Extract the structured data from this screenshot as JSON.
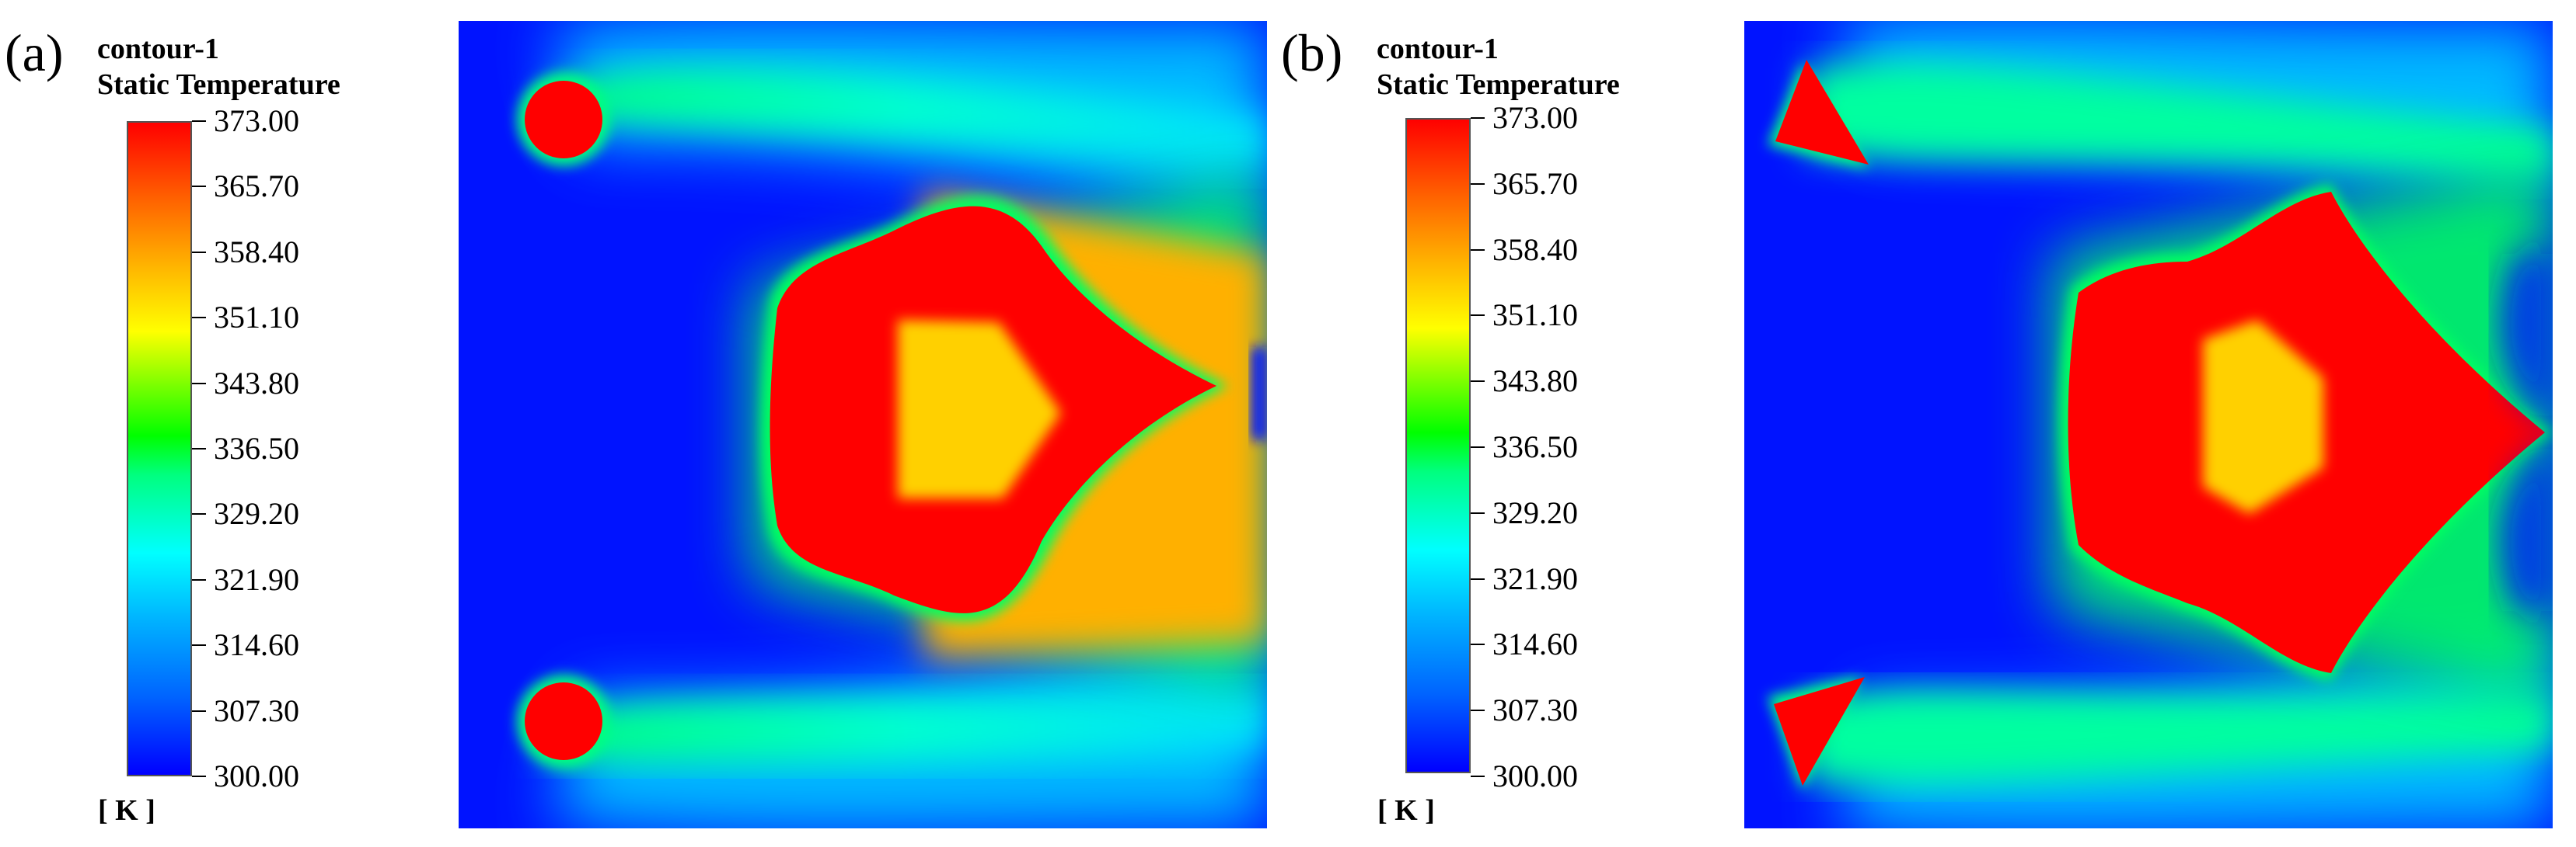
{
  "panels": [
    {
      "label": "(a)",
      "legend": {
        "title_line1": "contour-1",
        "title_line2": "Static Temperature",
        "ticks": [
          "373.00",
          "365.70",
          "358.40",
          "351.10",
          "343.80",
          "336.50",
          "329.20",
          "321.90",
          "314.60",
          "307.30",
          "300.00"
        ],
        "unit": "[ K ]"
      },
      "heated_body_shape": "cylinders"
    },
    {
      "label": "(b)",
      "legend": {
        "title_line1": "contour-1",
        "title_line2": "Static Temperature",
        "ticks": [
          "373.00",
          "365.70",
          "358.40",
          "351.10",
          "343.80",
          "336.50",
          "329.20",
          "321.90",
          "314.60",
          "307.30",
          "300.00"
        ],
        "unit": "[ K ]"
      },
      "heated_body_shape": "triangles"
    }
  ],
  "colors": {
    "cold": "#0013ff",
    "hot": "#ff0000",
    "warm_core": "#ffd000",
    "mid": "#00ffff"
  }
}
